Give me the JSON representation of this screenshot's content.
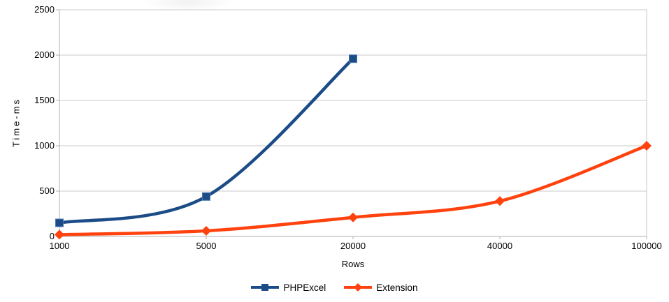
{
  "chart_data": {
    "type": "line",
    "title": "",
    "xlabel": "Rows",
    "ylabel": "Time-ms",
    "categories": [
      "1000",
      "5000",
      "20000",
      "40000",
      "100000"
    ],
    "y_ticks": [
      0,
      500,
      1000,
      1500,
      2000,
      2500
    ],
    "y_tick_labels": [
      "0",
      "500",
      "1000",
      "1500",
      "2000",
      "2500"
    ],
    "ylim": [
      0,
      2500
    ],
    "grid": "horizontal",
    "smooth_lines": true,
    "legend_position": "bottom-center",
    "series": [
      {
        "name": "PHPExcel",
        "color": "#1B4C87",
        "marker": "square",
        "values": [
          150,
          440,
          1960,
          null,
          null
        ]
      },
      {
        "name": "Extension",
        "color": "#FF420E",
        "marker": "diamond",
        "values": [
          20,
          62,
          210,
          390,
          1000
        ]
      }
    ],
    "colors": {
      "gridline": "#c9c9c9",
      "axis": "#b0b0b0",
      "text": "#000000",
      "background": "#ffffff"
    }
  }
}
